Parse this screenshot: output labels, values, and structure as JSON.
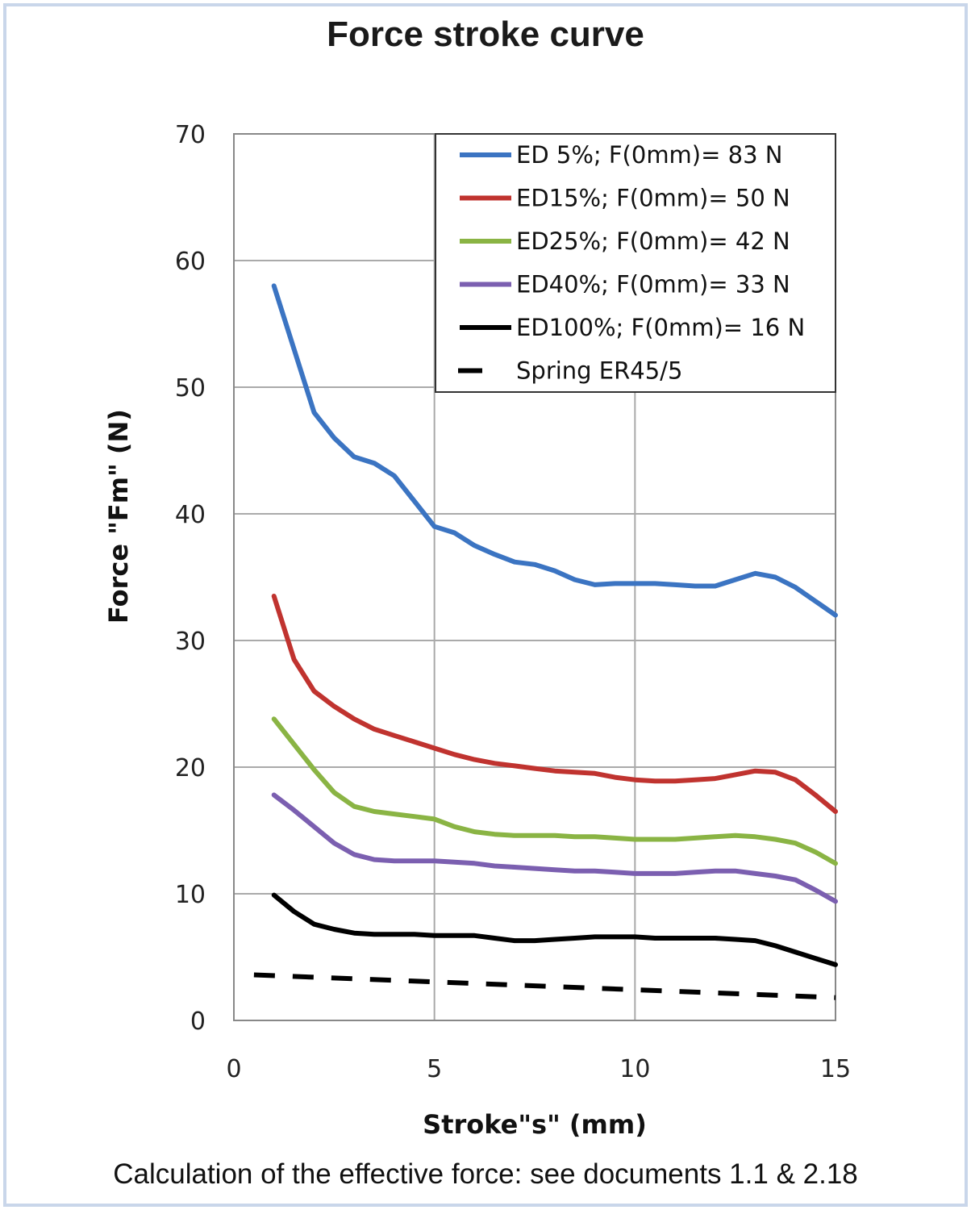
{
  "figure": {
    "title": "Force stroke curve",
    "footnote": "Calculation of the effective force: see documents 1.1 & 2.18"
  },
  "chart_data": {
    "type": "line",
    "title": "Force stroke curve",
    "xlabel": "Stroke\"s\" (mm)",
    "ylabel": "Force \"Fm\" (N)",
    "xlim": [
      0,
      15
    ],
    "ylim": [
      0,
      70
    ],
    "xticks": [
      0,
      5,
      10,
      15
    ],
    "yticks": [
      0,
      10,
      20,
      30,
      40,
      50,
      60,
      70
    ],
    "grid": true,
    "legend_position": "top-right",
    "series": [
      {
        "name": "ED 5%; F(0mm)= 83 N",
        "color": "#3b74c2",
        "style": "solid",
        "x": [
          1,
          1.5,
          2,
          2.5,
          3,
          3.5,
          4,
          4.5,
          5,
          5.5,
          6,
          6.5,
          7,
          7.5,
          8,
          8.5,
          9,
          9.5,
          10,
          10.5,
          11,
          11.5,
          12,
          12.5,
          13,
          13.5,
          14,
          14.5,
          15
        ],
        "y": [
          58,
          53,
          48,
          46,
          44.5,
          44,
          43,
          41,
          39,
          38.5,
          37.5,
          36.8,
          36.2,
          36,
          35.5,
          34.8,
          34.4,
          34.5,
          34.5,
          34.5,
          34.4,
          34.3,
          34.3,
          34.8,
          35.3,
          35.0,
          34.2,
          33.1,
          32
        ]
      },
      {
        "name": "ED15%; F(0mm)= 50 N",
        "color": "#c0332f",
        "style": "solid",
        "x": [
          1,
          1.5,
          2,
          2.5,
          3,
          3.5,
          4,
          4.5,
          5,
          5.5,
          6,
          6.5,
          7,
          7.5,
          8,
          8.5,
          9,
          9.5,
          10,
          10.5,
          11,
          11.5,
          12,
          12.5,
          13,
          13.5,
          14,
          14.5,
          15
        ],
        "y": [
          33.5,
          28.5,
          26,
          24.8,
          23.8,
          23,
          22.5,
          22,
          21.5,
          21,
          20.6,
          20.3,
          20.1,
          19.9,
          19.7,
          19.6,
          19.5,
          19.2,
          19.0,
          18.9,
          18.9,
          19.0,
          19.1,
          19.4,
          19.7,
          19.6,
          19.0,
          17.8,
          16.5
        ]
      },
      {
        "name": "ED25%; F(0mm)= 42 N",
        "color": "#8ab444",
        "style": "solid",
        "x": [
          1,
          1.5,
          2,
          2.5,
          3,
          3.5,
          4,
          4.5,
          5,
          5.5,
          6,
          6.5,
          7,
          7.5,
          8,
          8.5,
          9,
          9.5,
          10,
          10.5,
          11,
          11.5,
          12,
          12.5,
          13,
          13.5,
          14,
          14.5,
          15
        ],
        "y": [
          23.8,
          21.8,
          19.8,
          18.0,
          16.9,
          16.5,
          16.3,
          16.1,
          15.9,
          15.3,
          14.9,
          14.7,
          14.6,
          14.6,
          14.6,
          14.5,
          14.5,
          14.4,
          14.3,
          14.3,
          14.3,
          14.4,
          14.5,
          14.6,
          14.5,
          14.3,
          14.0,
          13.3,
          12.4
        ]
      },
      {
        "name": "ED40%; F(0mm)= 33 N",
        "color": "#7b5fb0",
        "style": "solid",
        "x": [
          1,
          1.5,
          2,
          2.5,
          3,
          3.5,
          4,
          4.5,
          5,
          5.5,
          6,
          6.5,
          7,
          7.5,
          8,
          8.5,
          9,
          9.5,
          10,
          10.5,
          11,
          11.5,
          12,
          12.5,
          13,
          13.5,
          14,
          14.5,
          15
        ],
        "y": [
          17.8,
          16.6,
          15.3,
          14.0,
          13.1,
          12.7,
          12.6,
          12.6,
          12.6,
          12.5,
          12.4,
          12.2,
          12.1,
          12.0,
          11.9,
          11.8,
          11.8,
          11.7,
          11.6,
          11.6,
          11.6,
          11.7,
          11.8,
          11.8,
          11.6,
          11.4,
          11.1,
          10.3,
          9.4
        ]
      },
      {
        "name": "ED100%; F(0mm)= 16 N",
        "color": "#000000",
        "style": "solid",
        "x": [
          1,
          1.5,
          2,
          2.5,
          3,
          3.5,
          4,
          4.5,
          5,
          5.5,
          6,
          6.5,
          7,
          7.5,
          8,
          8.5,
          9,
          9.5,
          10,
          10.5,
          11,
          11.5,
          12,
          12.5,
          13,
          13.5,
          14,
          14.5,
          15
        ],
        "y": [
          9.9,
          8.6,
          7.6,
          7.2,
          6.9,
          6.8,
          6.8,
          6.8,
          6.7,
          6.7,
          6.7,
          6.5,
          6.3,
          6.3,
          6.4,
          6.5,
          6.6,
          6.6,
          6.6,
          6.5,
          6.5,
          6.5,
          6.5,
          6.4,
          6.3,
          5.9,
          5.4,
          4.9,
          4.4
        ]
      },
      {
        "name": "Spring ER45/5",
        "color": "#000000",
        "style": "dashed",
        "x": [
          0.5,
          15
        ],
        "y": [
          3.6,
          1.8
        ]
      }
    ]
  }
}
